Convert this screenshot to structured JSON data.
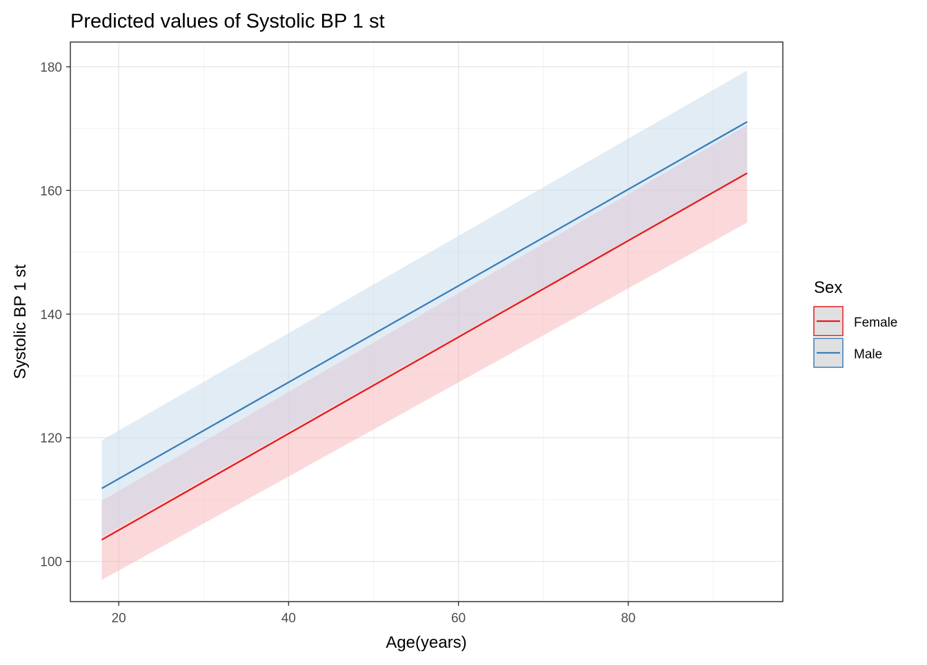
{
  "chart_data": {
    "type": "line",
    "title": "Predicted values of Systolic BP 1 st",
    "xlabel": "Age(years)",
    "ylabel": "Systolic BP 1 st",
    "xlim": [
      14.3,
      98.2
    ],
    "ylim": [
      93.5,
      184
    ],
    "x_ticks": [
      20,
      40,
      60,
      80
    ],
    "x_tick_labels": [
      "20",
      "40",
      "60",
      "80"
    ],
    "y_ticks": [
      100,
      120,
      140,
      160,
      180
    ],
    "y_tick_labels": [
      "100",
      "120",
      "140",
      "160",
      "180"
    ],
    "x_minor": [
      30,
      50,
      70,
      90
    ],
    "y_minor": [
      110,
      130,
      150,
      170
    ],
    "grid": true,
    "legend": {
      "title": "Sex",
      "position": "right"
    },
    "series": [
      {
        "name": "Female",
        "color": "#e41a1c",
        "fill": "#f8b4b8",
        "fill_opacity": 0.5,
        "x": [
          18,
          94
        ],
        "y": [
          103.5,
          162.8
        ],
        "ci_low": [
          97.0,
          154.8
        ],
        "ci_high": [
          109.8,
          170.6
        ]
      },
      {
        "name": "Male",
        "color": "#377eb8",
        "fill": "#c6d9ec",
        "fill_opacity": 0.5,
        "x": [
          18,
          94
        ],
        "y": [
          111.8,
          171.1
        ],
        "ci_low": [
          104.0,
          162.9
        ],
        "ci_high": [
          119.6,
          179.4
        ]
      }
    ]
  }
}
